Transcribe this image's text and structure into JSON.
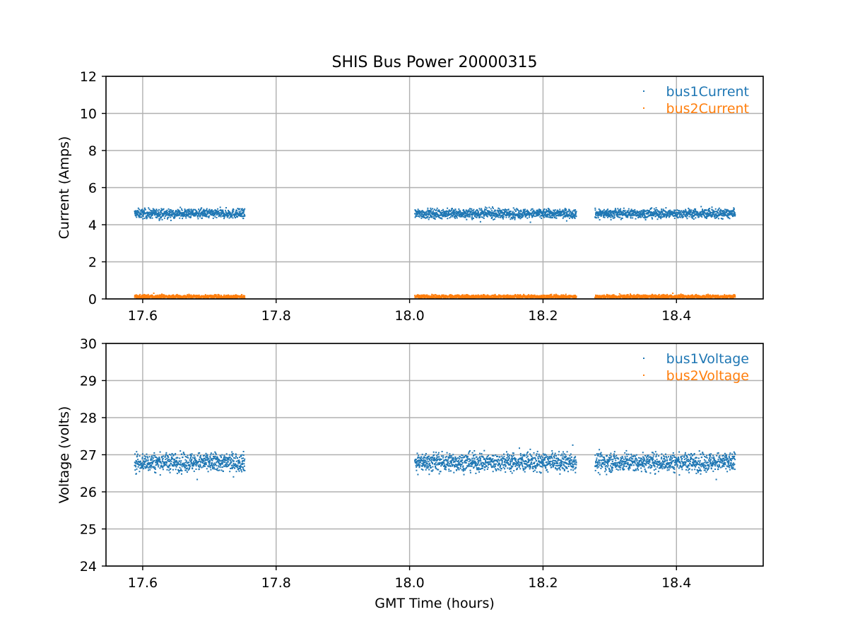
{
  "figure_title": "SHIS Bus Power 20000315",
  "colors": {
    "series1": "#1f77b4",
    "series2": "#ff7f0e",
    "grid": "#b0b0b0",
    "axis": "#000000"
  },
  "chart_data": [
    {
      "type": "scatter",
      "title": "SHIS Bus Power 20000315",
      "xlabel": "",
      "ylabel": "Current (Amps)",
      "xlim": [
        17.545,
        18.53
      ],
      "ylim": [
        0,
        12
      ],
      "xticks": [
        17.6,
        17.8,
        18.0,
        18.2,
        18.4
      ],
      "xtick_labels": [
        "17.6",
        "17.8",
        "18.0",
        "18.2",
        "18.4"
      ],
      "yticks": [
        0,
        2,
        4,
        6,
        8,
        10,
        12
      ],
      "ytick_labels": [
        "0",
        "2",
        "4",
        "6",
        "8",
        "10",
        "12"
      ],
      "grid": true,
      "legend": "top-right",
      "x_segments": [
        [
          17.588,
          17.753
        ],
        [
          18.008,
          18.25
        ],
        [
          18.278,
          18.488
        ]
      ],
      "series": [
        {
          "name": "bus1Current",
          "color": "#1f77b4",
          "mean": 4.6,
          "spread": 0.25
        },
        {
          "name": "bus2Current",
          "color": "#ff7f0e",
          "mean": 0.12,
          "spread": 0.1
        }
      ]
    },
    {
      "type": "scatter",
      "title": "",
      "xlabel": "GMT Time (hours)",
      "ylabel": "Voltage (volts)",
      "xlim": [
        17.545,
        18.53
      ],
      "ylim": [
        24,
        30
      ],
      "xticks": [
        17.6,
        17.8,
        18.0,
        18.2,
        18.4
      ],
      "xtick_labels": [
        "17.6",
        "17.8",
        "18.0",
        "18.2",
        "18.4"
      ],
      "yticks": [
        24,
        25,
        26,
        27,
        28,
        29,
        30
      ],
      "ytick_labels": [
        "24",
        "25",
        "26",
        "27",
        "28",
        "29",
        "30"
      ],
      "grid": true,
      "legend": "top-right",
      "x_segments": [
        [
          17.588,
          17.753
        ],
        [
          18.008,
          18.25
        ],
        [
          18.278,
          18.488
        ]
      ],
      "series": [
        {
          "name": "bus1Voltage",
          "color": "#1f77b4",
          "mean": 26.8,
          "spread": 0.25
        },
        {
          "name": "bus2Voltage",
          "color": "#ff7f0e",
          "mean": null,
          "spread": null
        }
      ]
    }
  ]
}
